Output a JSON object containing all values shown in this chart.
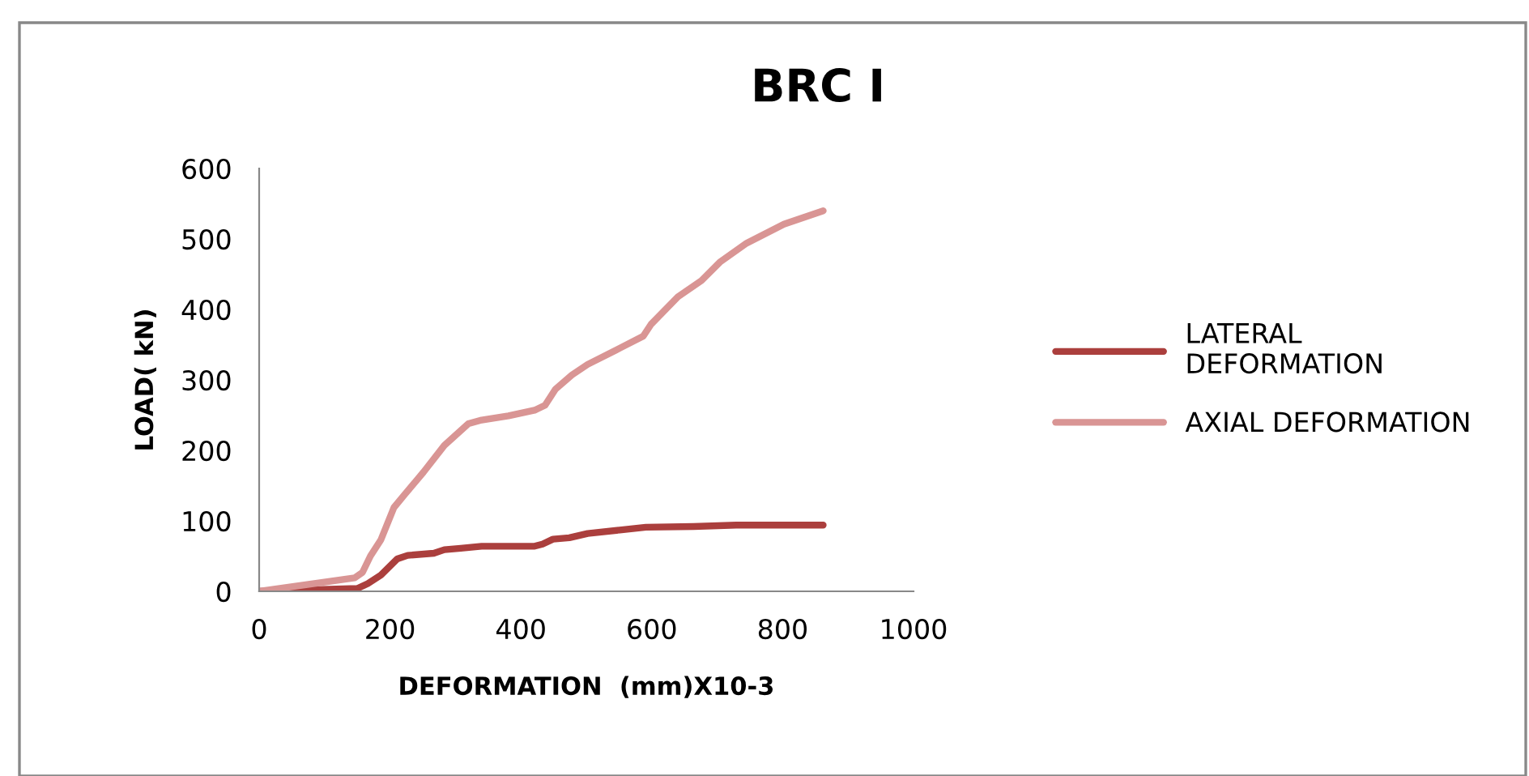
{
  "chart_data": {
    "type": "line",
    "title": "BRC I",
    "xlabel": "DEFORMATION  (mm)X10-3",
    "ylabel": "LOAD( kN)",
    "xlim": [
      0,
      1000
    ],
    "xticks": [
      0,
      200,
      400,
      600,
      800,
      1000
    ],
    "ylim": [
      0,
      600
    ],
    "yticks": [
      0,
      100,
      200,
      300,
      400,
      500,
      600
    ],
    "grid": false,
    "legend": "right",
    "marker": "none",
    "line_style": "solid",
    "series": [
      {
        "name": "LATERAL\nDEFORMATION",
        "color": "#ab3f3d",
        "x": [
          0,
          150,
          166,
          186,
          211,
          227,
          267,
          283,
          308,
          340,
          421,
          433,
          449,
          474,
          502,
          551,
          591,
          664,
          729,
          862
        ],
        "values": [
          0,
          4,
          11,
          23,
          46,
          51,
          54,
          59,
          61,
          64,
          64,
          67,
          74,
          76,
          82,
          87,
          91,
          92,
          94,
          94
        ]
      },
      {
        "name": "AXIAL DEFORMATION",
        "color": "#d99594",
        "x": [
          0,
          146,
          158,
          170,
          186,
          206,
          223,
          251,
          283,
          320,
          340,
          381,
          421,
          437,
          453,
          478,
          502,
          551,
          587,
          599,
          640,
          676,
          704,
          745,
          802,
          862
        ],
        "values": [
          0,
          19,
          27,
          50,
          73,
          119,
          138,
          169,
          207,
          238,
          243,
          249,
          257,
          264,
          287,
          307,
          322,
          345,
          362,
          379,
          418,
          441,
          467,
          494,
          521,
          540
        ]
      }
    ]
  }
}
